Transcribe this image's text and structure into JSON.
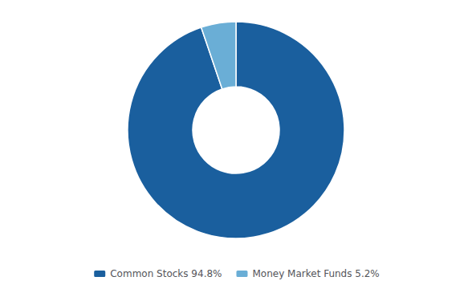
{
  "chart_data": {
    "type": "donut",
    "categories": [
      "Common Stocks 94.8%",
      "Money Market Funds 5.2%"
    ],
    "values": [
      94.8,
      5.2
    ],
    "colors": [
      "#1a5f9e",
      "#6aaed6"
    ],
    "legend": "bottom"
  }
}
